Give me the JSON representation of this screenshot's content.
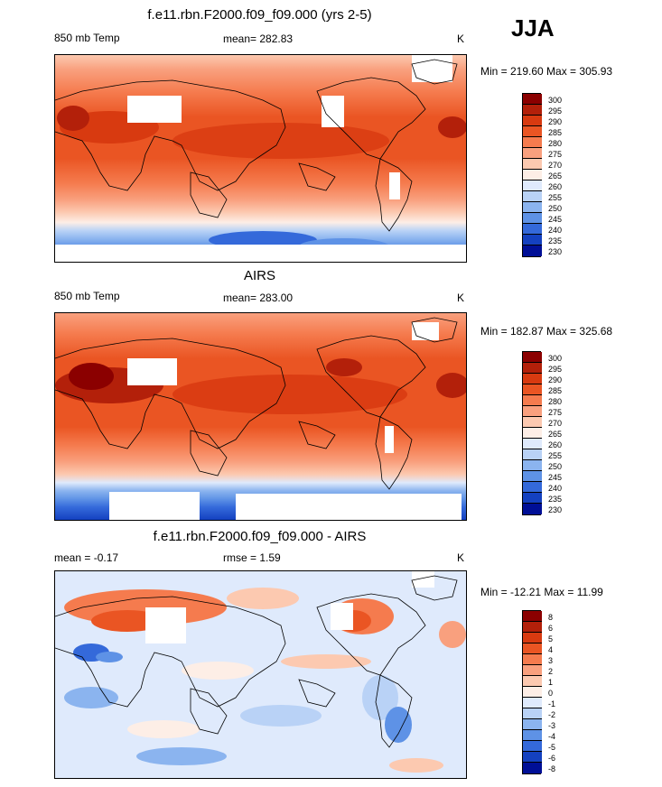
{
  "season": "JJA",
  "panels": [
    {
      "title": "f.e11.rbn.F2000.f09_f09.000 (yrs 2-5)",
      "left_label": "850 mb Temp",
      "center_label": "mean= 282.83",
      "units": "K",
      "minmax": "Min = 219.60 Max = 305.93",
      "levels": [
        "300",
        "295",
        "290",
        "285",
        "280",
        "275",
        "270",
        "265",
        "260",
        "255",
        "250",
        "245",
        "240",
        "235",
        "230"
      ]
    },
    {
      "title": "AIRS",
      "left_label": "850 mb Temp",
      "center_label": "mean= 283.00",
      "units": "K",
      "minmax": "Min = 182.87 Max = 325.68",
      "levels": [
        "300",
        "295",
        "290",
        "285",
        "280",
        "275",
        "270",
        "265",
        "260",
        "255",
        "250",
        "245",
        "240",
        "235",
        "230"
      ]
    },
    {
      "title": "f.e11.rbn.F2000.f09_f09.000 - AIRS",
      "left_label": "mean =  -0.17",
      "center_label": "rmse =   1.59",
      "units": "K",
      "minmax": "Min = -12.21 Max =  11.99",
      "levels": [
        "8",
        "6",
        "5",
        "4",
        "3",
        "2",
        "1",
        "0",
        "-1",
        "-2",
        "-3",
        "-4",
        "-5",
        "-6",
        "-8"
      ]
    }
  ],
  "colors": {
    "temp_scale": [
      "#8b0000",
      "#b3200a",
      "#d83a10",
      "#ea5523",
      "#f57b4e",
      "#f9a07e",
      "#fcc9b0",
      "#fdeee6",
      "#dfeafc",
      "#b9d2f6",
      "#8bb4ef",
      "#5e92e6",
      "#3469da",
      "#1441c0",
      "#000f96"
    ],
    "diff_scale": [
      "#8b0000",
      "#b3200a",
      "#d83a10",
      "#ea5523",
      "#f57b4e",
      "#f9a07e",
      "#fcc9b0",
      "#fdeee6",
      "#dfeafc",
      "#b9d2f6",
      "#8bb4ef",
      "#5e92e6",
      "#3469da",
      "#1441c0",
      "#000f96"
    ]
  },
  "chart_data": [
    {
      "type": "heatmap",
      "title": "f.e11.rbn.F2000.f09_f09.000 (yrs 2-5)",
      "variable": "850 mb Temp",
      "units": "K",
      "mean": 282.83,
      "min": 219.6,
      "max": 305.93,
      "contour_levels": [
        230,
        235,
        240,
        245,
        250,
        255,
        260,
        265,
        270,
        275,
        280,
        285,
        290,
        295,
        300
      ]
    },
    {
      "type": "heatmap",
      "title": "AIRS",
      "variable": "850 mb Temp",
      "units": "K",
      "mean": 283.0,
      "min": 182.87,
      "max": 325.68,
      "contour_levels": [
        230,
        235,
        240,
        245,
        250,
        255,
        260,
        265,
        270,
        275,
        280,
        285,
        290,
        295,
        300
      ]
    },
    {
      "type": "heatmap",
      "title": "f.e11.rbn.F2000.f09_f09.000 - AIRS",
      "units": "K",
      "mean": -0.17,
      "rmse": 1.59,
      "min": -12.21,
      "max": 11.99,
      "contour_levels": [
        -8,
        -6,
        -5,
        -4,
        -3,
        -2,
        -1,
        0,
        1,
        2,
        3,
        4,
        5,
        6,
        8
      ]
    }
  ]
}
